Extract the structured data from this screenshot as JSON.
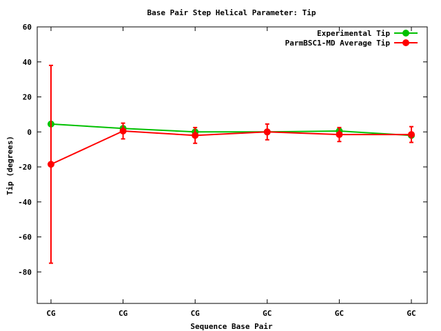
{
  "chart_data": {
    "type": "line",
    "title": "Base Pair Step Helical Parameter: Tip",
    "xlabel": "Sequence Base Pair",
    "ylabel": "Tip (degrees)",
    "categories": [
      "CG",
      "CG",
      "CG",
      "GC",
      "GC",
      "GC"
    ],
    "ylim": [
      -98,
      60
    ],
    "yticks": [
      60,
      40,
      20,
      0,
      -20,
      -40,
      -60,
      -80
    ],
    "grid": false,
    "legend_position": "top-right",
    "series": [
      {
        "name": "Experimental Tip",
        "color": "#00c000",
        "values": [
          4.5,
          2,
          0,
          0,
          0.5,
          -2
        ],
        "errors": [
          0,
          0,
          0,
          0,
          0,
          0
        ]
      },
      {
        "name": "ParmBSC1-MD Average Tip",
        "color": "#ff0000",
        "values": [
          -18.5,
          0.5,
          -2,
          0,
          -1.5,
          -1.5
        ],
        "errors": [
          56.5,
          4.5,
          4.5,
          4.5,
          4.0,
          4.5
        ]
      }
    ]
  }
}
